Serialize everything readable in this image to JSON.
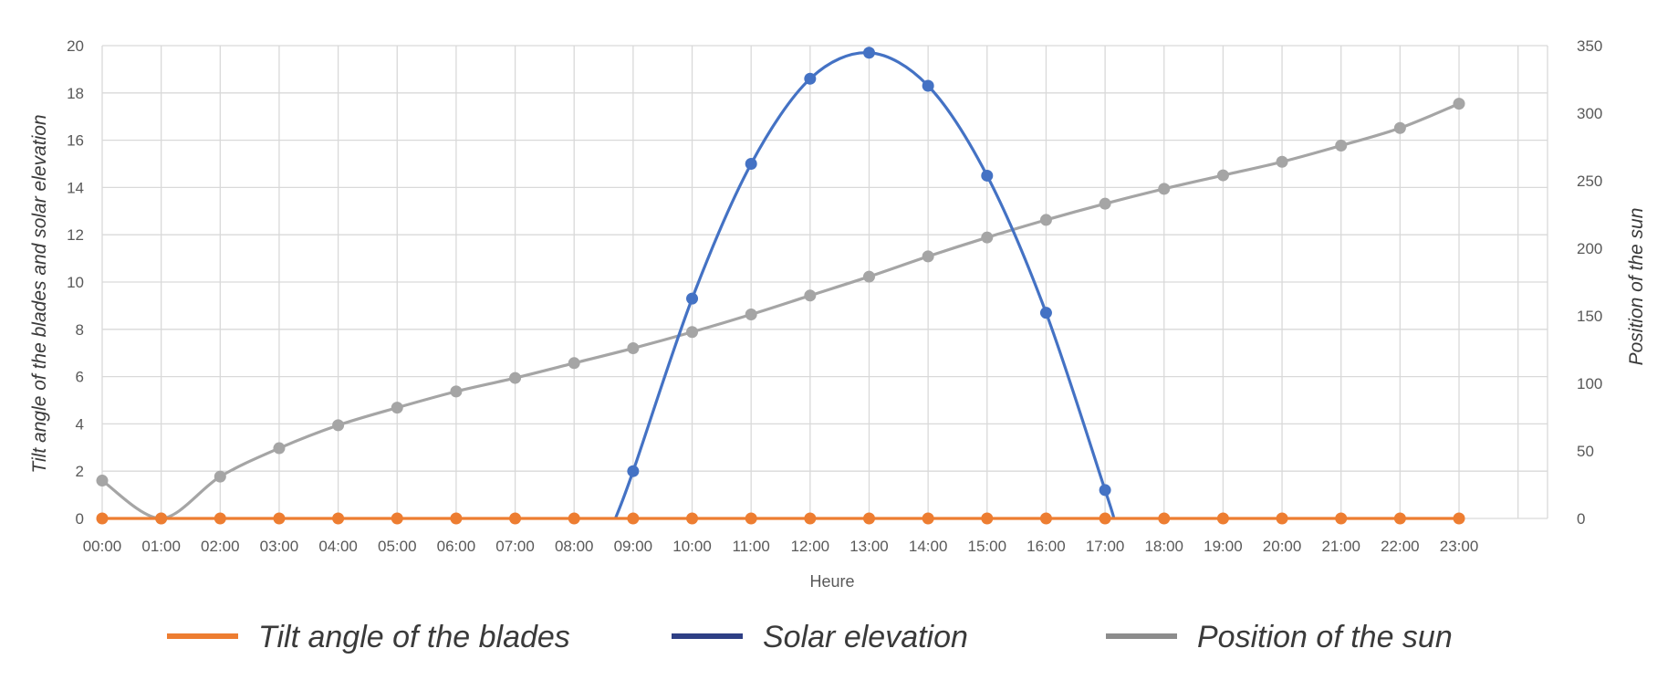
{
  "chart_data": {
    "type": "line",
    "title": "",
    "xlabel": "Heure",
    "ylabel": "Tilt angle of the blades and solar elevation",
    "y2label": "Position of the sun",
    "ylim": [
      0,
      20
    ],
    "y2lim": [
      0,
      350
    ],
    "yticks": [
      "0",
      "2",
      "4",
      "6",
      "8",
      "10",
      "12",
      "14",
      "16",
      "18",
      "20"
    ],
    "y2ticks": [
      "0",
      "50",
      "100",
      "150",
      "200",
      "250",
      "300",
      "350"
    ],
    "categories": [
      "00:00",
      "01:00",
      "02:00",
      "03:00",
      "04:00",
      "05:00",
      "06:00",
      "07:00",
      "08:00",
      "09:00",
      "10:00",
      "11:00",
      "12:00",
      "13:00",
      "14:00",
      "15:00",
      "16:00",
      "17:00",
      "18:00",
      "19:00",
      "20:00",
      "21:00",
      "22:00",
      "23:00"
    ],
    "grid": true,
    "legend": "bottom",
    "series": [
      {
        "name": "Tilt angle of the blades",
        "axis": "left",
        "color": "#ED7D31",
        "values": [
          0,
          0,
          0,
          0,
          0,
          0,
          0,
          0,
          0,
          0,
          0,
          0,
          0,
          0,
          0,
          0,
          0,
          0,
          0,
          0,
          0,
          0,
          0,
          0
        ]
      },
      {
        "name": "Solar elevation",
        "axis": "left",
        "color": "#4472C4",
        "legend_color": "#2E3F85",
        "values": [
          null,
          null,
          null,
          null,
          null,
          null,
          null,
          null,
          null,
          2.0,
          9.3,
          15.0,
          18.6,
          19.7,
          18.3,
          14.5,
          8.7,
          1.2,
          null,
          null,
          null,
          null,
          null,
          null
        ]
      },
      {
        "name": "Position of the sun",
        "axis": "right",
        "color": "#A5A5A5",
        "legend_color": "#8C8C8C",
        "values": [
          28,
          0,
          31,
          52,
          69,
          82,
          94,
          104,
          115,
          126,
          138,
          151,
          165,
          179,
          194,
          208,
          221,
          233,
          244,
          254,
          264,
          276,
          289,
          307
        ]
      }
    ]
  }
}
